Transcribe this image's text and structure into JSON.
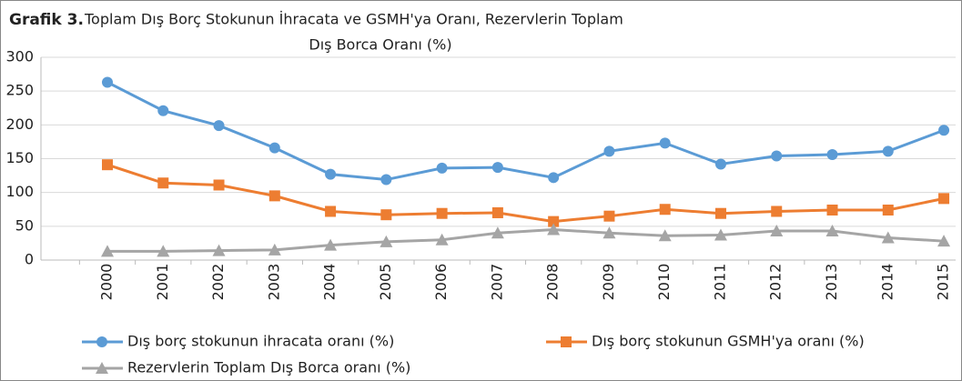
{
  "chart_data": {
    "type": "line",
    "title": "Grafik 3.",
    "subtitle": [
      "Toplam Dış Borç Stokunun İhracata ve GSMH'ya  Oranı, Rezervlerin Toplam",
      "Dış Borca Oranı (%)"
    ],
    "categories": [
      "2000",
      "2001",
      "2002",
      "2003",
      "2004",
      "2005",
      "2006",
      "2007",
      "2008",
      "2009",
      "2010",
      "2011",
      "2012",
      "2013",
      "2014",
      "2015"
    ],
    "series": [
      {
        "name": "Dış borç stokunun ihracata oranı (%)",
        "color": "#5b9bd5",
        "marker": "circle",
        "values": [
          263,
          221,
          199,
          166,
          127,
          119,
          136,
          137,
          122,
          161,
          173,
          142,
          154,
          156,
          161,
          192
        ]
      },
      {
        "name": "Dış borç stokunun GSMH'ya oranı (%)",
        "color": "#ed7d31",
        "marker": "square",
        "values": [
          141,
          114,
          111,
          95,
          72,
          67,
          69,
          70,
          57,
          65,
          75,
          69,
          72,
          74,
          74,
          91
        ]
      },
      {
        "name": "Rezervlerin Toplam Dış Borca oranı (%)",
        "color": "#a5a5a5",
        "marker": "triangle",
        "values": [
          13,
          13,
          14,
          15,
          22,
          27,
          30,
          40,
          45,
          40,
          36,
          37,
          43,
          43,
          33,
          28
        ]
      }
    ],
    "ylim": [
      0,
      300
    ],
    "yticks": [
      0,
      50,
      100,
      150,
      200,
      250,
      300
    ],
    "grid": true
  }
}
